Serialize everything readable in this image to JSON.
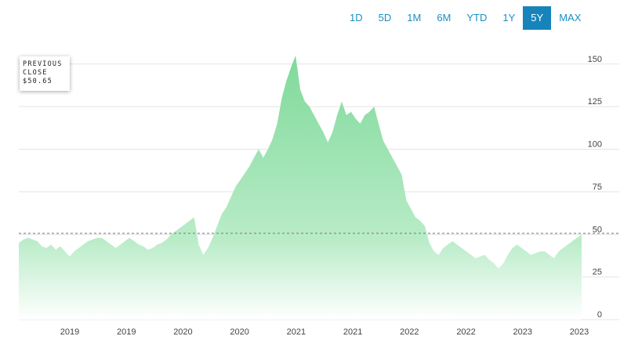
{
  "range_buttons": [
    {
      "label": "1D",
      "active": false
    },
    {
      "label": "5D",
      "active": false
    },
    {
      "label": "1M",
      "active": false
    },
    {
      "label": "6M",
      "active": false
    },
    {
      "label": "YTD",
      "active": false
    },
    {
      "label": "1Y",
      "active": false
    },
    {
      "label": "5Y",
      "active": true
    },
    {
      "label": "MAX",
      "active": false
    }
  ],
  "previous_close": {
    "label_line1": "PREVIOUS",
    "label_line2": "CLOSE",
    "value": "$50.65"
  },
  "colors": {
    "area_top": "#7fd99a",
    "area_bottom": "#ffffff",
    "reference_line": "#777777",
    "accent": "#1684bb"
  },
  "chart_data": {
    "type": "area",
    "title": "",
    "xlabel": "",
    "ylabel": "",
    "ylim": [
      0,
      160
    ],
    "y_ticks": [
      0,
      25,
      50,
      75,
      100,
      125,
      150
    ],
    "x_ticks": [
      "2019",
      "2019",
      "2020",
      "2020",
      "2021",
      "2021",
      "2022",
      "2022",
      "2023",
      "2023"
    ],
    "reference_value": 50.65,
    "grid": true,
    "series": [
      {
        "values": [
          45,
          47,
          48,
          47,
          46,
          43,
          42,
          44,
          41,
          43,
          40,
          37,
          40,
          42,
          44,
          46,
          47,
          48,
          48,
          46,
          44,
          42,
          44,
          46,
          48,
          46,
          44,
          43,
          41,
          42,
          44,
          45,
          47,
          50,
          52,
          54,
          56,
          58,
          60,
          44,
          38,
          42,
          48,
          55,
          62,
          66,
          72,
          78,
          82,
          86,
          90,
          95,
          100,
          95,
          100,
          106,
          115,
          130,
          140,
          148,
          155,
          135,
          128,
          125,
          120,
          115,
          110,
          104,
          110,
          120,
          128,
          120,
          122,
          118,
          115,
          120,
          122,
          125,
          115,
          105,
          100,
          95,
          90,
          85,
          70,
          65,
          60,
          58,
          55,
          45,
          40,
          38,
          42,
          44,
          46,
          44,
          42,
          40,
          38,
          36,
          37,
          38,
          35,
          33,
          30,
          33,
          38,
          42,
          44,
          42,
          40,
          38,
          39,
          40,
          40,
          38,
          36,
          40,
          42,
          44,
          46,
          48,
          50
        ]
      }
    ]
  }
}
